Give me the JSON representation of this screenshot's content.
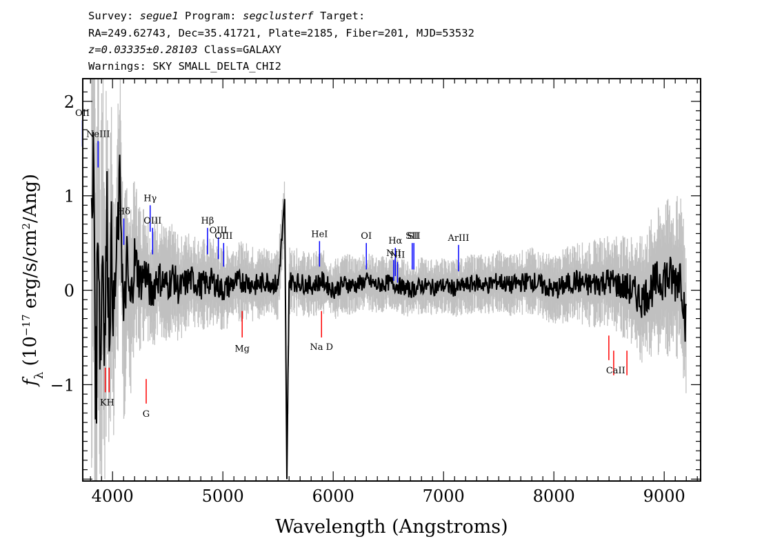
{
  "header": {
    "survey_label": "Survey: ",
    "survey": "segue1",
    "program_label": " Program: ",
    "program": "segclusterf",
    "target_label": " Target:",
    "line2": "RA=249.62743, Dec=35.41721, Plate=2185, Fiber=201, MJD=53532",
    "redshift": "z=0.03335±0.28103",
    "class": " Class=GALAXY",
    "warnings": "Warnings: SKY SMALL_DELTA_CHI2"
  },
  "chart_data": {
    "type": "line",
    "title": "",
    "xlabel": "Wavelength (Angstroms)",
    "ylabel": "f_λ (10^-17 erg/s/cm^2/Ang)",
    "xlim": [
      3730,
      9330
    ],
    "ylim": [
      -2.02,
      2.24
    ],
    "x_ticks": [
      4000,
      5000,
      6000,
      7000,
      8000,
      9000
    ],
    "x_tick_labels": [
      "4000",
      "5000",
      "6000",
      "7000",
      "8000",
      "9000"
    ],
    "y_ticks": [
      -1,
      0,
      1,
      2
    ],
    "y_tick_labels": [
      "−1",
      "0",
      "1",
      "2"
    ],
    "grid": false,
    "series": [
      {
        "role": "flux",
        "color": "#000000",
        "x": [
          3810,
          3830,
          3850,
          3870,
          3890,
          3910,
          3930,
          3950,
          3970,
          3990,
          4010,
          4040,
          4070,
          4100,
          4130,
          4160,
          4200,
          4250,
          4300,
          4350,
          4400,
          4450,
          4500,
          4550,
          4600,
          4700,
          4800,
          4900,
          5000,
          5100,
          5200,
          5300,
          5400,
          5500,
          5560,
          5580,
          5600,
          5700,
          5800,
          5900,
          6000,
          6100,
          6200,
          6300,
          6400,
          6500,
          6600,
          6700,
          6800,
          6900,
          7000,
          7100,
          7200,
          7300,
          7400,
          7500,
          7600,
          7700,
          7800,
          7900,
          8000,
          8100,
          8200,
          8300,
          8400,
          8500,
          8600,
          8700,
          8800,
          8900,
          9000,
          9100,
          9150,
          9200
        ],
        "y": [
          0.3,
          1.4,
          -1.2,
          1.0,
          -0.8,
          0.6,
          -0.5,
          0.8,
          -0.4,
          0.5,
          -0.3,
          0.4,
          1.2,
          -0.4,
          0.3,
          -0.2,
          0.35,
          0.1,
          0.2,
          -0.05,
          0.15,
          0.1,
          0.05,
          0.15,
          0.0,
          0.12,
          0.05,
          0.1,
          0.0,
          0.08,
          0.1,
          0.05,
          0.1,
          0.05,
          0.9,
          -2.0,
          0.1,
          0.08,
          0.05,
          0.1,
          0.0,
          0.07,
          0.05,
          0.1,
          0.05,
          0.08,
          0.05,
          0.0,
          0.05,
          0.03,
          0.05,
          0.02,
          0.05,
          0.08,
          0.05,
          0.1,
          0.05,
          0.08,
          0.1,
          0.05,
          0.0,
          0.05,
          0.1,
          0.05,
          0.08,
          0.1,
          0.05,
          0.0,
          -0.1,
          0.05,
          0.15,
          0.1,
          0.2,
          -0.4
        ]
      },
      {
        "role": "error",
        "color": "#c0c0c0",
        "x": [
          3810,
          3900,
          4000,
          4100,
          4200,
          4300,
          4400,
          4500,
          4700,
          5000,
          5500,
          6000,
          6500,
          7000,
          7500,
          8000,
          8300,
          8600,
          8800,
          9000,
          9200
        ],
        "y": [
          2.2,
          1.4,
          1.0,
          0.8,
          0.6,
          0.5,
          0.45,
          0.4,
          0.35,
          0.3,
          0.25,
          0.22,
          0.2,
          0.2,
          0.22,
          0.25,
          0.3,
          0.35,
          0.45,
          0.55,
          0.6
        ]
      }
    ],
    "emission_lines": [
      {
        "label": "OII",
        "x": 3727,
        "y_bottom": 1.52,
        "y_top": 1.8
      },
      {
        "label": "NeIII",
        "x": 3869,
        "y_bottom": 1.3,
        "y_top": 1.58
      },
      {
        "label": "Hδ",
        "x": 4102,
        "y_bottom": 0.48,
        "y_top": 0.76
      },
      {
        "label": "Hγ",
        "x": 4341,
        "y_bottom": 0.62,
        "y_top": 0.9
      },
      {
        "label": "OIII",
        "x": 4363,
        "y_bottom": 0.38,
        "y_top": 0.66
      },
      {
        "label": "Hβ",
        "x": 4861,
        "y_bottom": 0.38,
        "y_top": 0.66
      },
      {
        "label": "OIII",
        "x": 4959,
        "y_bottom": 0.33,
        "y_top": 0.56
      },
      {
        "label": "OIII",
        "x": 5007,
        "y_bottom": 0.25,
        "y_top": 0.5
      },
      {
        "label": "HeI",
        "x": 5876,
        "y_bottom": 0.25,
        "y_top": 0.52
      },
      {
        "label": "OI",
        "x": 6300,
        "y_bottom": 0.22,
        "y_top": 0.5
      },
      {
        "label": "NII",
        "x": 6548,
        "y_bottom": 0.1,
        "y_top": 0.32
      },
      {
        "label": "Hα",
        "x": 6563,
        "y_bottom": 0.15,
        "y_top": 0.45
      },
      {
        "label": "NII",
        "x": 6583,
        "y_bottom": 0.08,
        "y_top": 0.3
      },
      {
        "label": "SII",
        "x": 6716,
        "y_bottom": 0.22,
        "y_top": 0.5
      },
      {
        "label": "SII",
        "x": 6731,
        "y_bottom": 0.22,
        "y_top": 0.5
      },
      {
        "label": "ArIII",
        "x": 7136,
        "y_bottom": 0.2,
        "y_top": 0.48
      }
    ],
    "absorption_lines": [
      {
        "label": "K",
        "x": 3934,
        "y_top": -0.82,
        "y_bottom": -1.08
      },
      {
        "label": "H",
        "x": 3969,
        "y_top": -0.82,
        "y_bottom": -1.08
      },
      {
        "label": "G",
        "x": 4305,
        "y_top": -0.94,
        "y_bottom": -1.2
      },
      {
        "label": "Mg",
        "x": 5175,
        "y_top": -0.22,
        "y_bottom": -0.5
      },
      {
        "label": "Na D",
        "x": 5894,
        "y_top": -0.22,
        "y_bottom": -0.5
      },
      {
        "label": "CaII",
        "x": 8498,
        "y_top": -0.48,
        "y_bottom": -0.74
      },
      {
        "label": "CaII",
        "x": 8542,
        "y_top": -0.64,
        "y_bottom": -0.9
      },
      {
        "label": "CaII",
        "x": 8662,
        "y_top": -0.64,
        "y_bottom": -0.9
      }
    ],
    "absorption_label_text": {
      "kh": "KH",
      "g": "G",
      "mg": "Mg",
      "nad": "Na D",
      "caii": "CaII"
    },
    "colors": {
      "flux": "#000000",
      "error": "#c0c0c0",
      "emission": "#0000ff",
      "absorption": "#ff0000",
      "axes": "#000000"
    }
  }
}
